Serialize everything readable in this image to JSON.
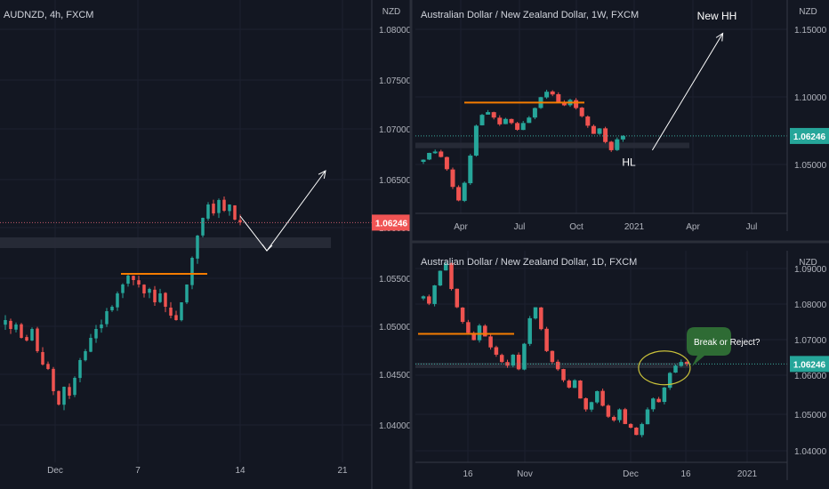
{
  "chart_data": [
    {
      "id": "left",
      "type": "candlestick",
      "title": "AUDNZD, 4h, FXCM",
      "currency": "NZD",
      "ylim": [
        1.0355,
        1.0875
      ],
      "y_ticks": [
        "1.08000",
        "1.07500",
        "1.07000",
        "1.06500",
        "1.06000",
        "1.05500",
        "1.05000",
        "1.04500",
        "1.04000"
      ],
      "x_ticks": [
        "Dec",
        "7",
        "14",
        "21"
      ],
      "price_label": "1.06246",
      "current_price": 1.06246,
      "close_path": [
        1.0515,
        1.0505,
        1.051,
        1.0495,
        1.0492,
        1.0505,
        1.048,
        1.0465,
        1.046,
        1.0435,
        1.042,
        1.044,
        1.043,
        1.045,
        1.047,
        1.048,
        1.0495,
        1.0505,
        1.051,
        1.0525,
        1.053,
        1.0545,
        1.0555,
        1.0565,
        1.056,
        1.0555,
        1.0545,
        1.055,
        1.0535,
        1.0545,
        1.053,
        1.052,
        1.0515,
        1.0535,
        1.0555,
        1.0585,
        1.061,
        1.063,
        1.0645,
        1.0635,
        1.065,
        1.0638,
        1.0645,
        1.0628,
        1.0625
      ],
      "resistance_level": 1.0567,
      "support_zone": [
        1.0596,
        1.0608
      ],
      "projection": [
        {
          "index": 44,
          "price": 1.0632
        },
        {
          "index": 49,
          "price": 1.0593
        },
        {
          "index": 60,
          "price": 1.0683
        }
      ]
    },
    {
      "id": "top-right",
      "type": "candlestick",
      "title": "Australian Dollar / New Zealand Dollar, 1W, FXCM",
      "currency": "NZD",
      "ylim": [
        1.0055,
        1.1625
      ],
      "y_ticks": [
        "1.15000",
        "1.10000",
        "1.05000"
      ],
      "x_ticks": [
        "Apr",
        "Jul",
        "Oct",
        "2021",
        "Apr",
        "Jul"
      ],
      "price_label": "1.06246",
      "current_price": 1.06246,
      "close_path": [
        1.045,
        1.05,
        1.051,
        1.047,
        1.038,
        1.025,
        1.015,
        1.028,
        1.048,
        1.07,
        1.078,
        1.08,
        1.076,
        1.071,
        1.075,
        1.072,
        1.067,
        1.072,
        1.076,
        1.083,
        1.091,
        1.095,
        1.093,
        1.087,
        1.085,
        1.089,
        1.083,
        1.077,
        1.07,
        1.064,
        1.068,
        1.058,
        1.052,
        1.06,
        1.0625
      ],
      "resistance_level": 1.087,
      "support_zone": [
        1.0535,
        1.0575
      ],
      "projection": [
        {
          "index": 39,
          "price": 1.052
        },
        {
          "index": 51,
          "price": 1.138
        }
      ],
      "annotations": [
        {
          "text": "New HH",
          "index": 50,
          "price": 1.148
        },
        {
          "text": "HL",
          "index": 35,
          "price": 1.0405
        }
      ]
    },
    {
      "id": "bottom-right",
      "type": "candlestick",
      "title": "Australian Dollar / New Zealand Dollar, 1D, FXCM",
      "currency": "NZD",
      "ylim": [
        1.0355,
        1.0935
      ],
      "y_ticks": [
        "1.09000",
        "1.08000",
        "1.07000",
        "1.06000",
        "1.05000",
        "1.04000"
      ],
      "x_ticks": [
        "16",
        "Nov",
        "Dec",
        "16",
        "2021"
      ],
      "price_label": "1.06246",
      "current_price": 1.06246,
      "close_path": [
        1.081,
        1.079,
        1.084,
        1.088,
        1.09,
        1.083,
        1.078,
        1.074,
        1.071,
        1.069,
        1.073,
        1.07,
        1.067,
        1.065,
        1.063,
        1.062,
        1.065,
        1.061,
        1.068,
        1.075,
        1.078,
        1.072,
        1.066,
        1.063,
        1.061,
        1.058,
        1.056,
        1.058,
        1.053,
        1.05,
        1.052,
        1.055,
        1.051,
        1.048,
        1.047,
        1.05,
        1.046,
        1.045,
        1.043,
        1.046,
        1.05,
        1.053,
        1.052,
        1.056,
        1.06,
        1.062,
        1.063,
        1.0625
      ],
      "resistance_level": 1.0707,
      "support_zone": [
        1.0618,
        1.0628
      ],
      "ellipse_center": {
        "index": 43,
        "price": 1.0614
      },
      "callout": "Break or Reject?"
    }
  ],
  "colors": {
    "background": "#131722",
    "up": "#26a69a",
    "down": "#ef5350",
    "level": "#f57c00",
    "price_label_left": "#f05454",
    "price_label_right": "#26a69a",
    "bubble": "#2e6b34",
    "ellipse": "#c9c13a"
  }
}
